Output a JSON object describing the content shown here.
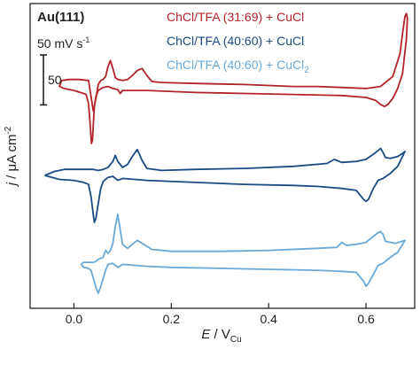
{
  "chart_data": {
    "type": "line",
    "title": "",
    "xlabel_italic": "E",
    "xlabel_rest": " / V",
    "xlabel_sub": "Cu",
    "ylabel_italic": "j",
    "ylabel_rest": " / μA cm",
    "ylabel_sup": "-2",
    "xlim": [
      -0.09,
      0.7
    ],
    "ylim": [
      -290,
      15
    ],
    "x_ticks": [
      0.0,
      0.2,
      0.4,
      0.6
    ],
    "x_tick_labels": [
      "0.0",
      "0.2",
      "0.4",
      "0.6"
    ],
    "y_ticks_labeled": false,
    "grid": false,
    "annotations": {
      "sample": "Au(111)",
      "scan_rate_main": "50 mV s",
      "scan_rate_sup": "-1",
      "scale_bar_label": "50",
      "scale_bar_value": 50
    },
    "legend_position": "top-right",
    "series": [
      {
        "name": "ChCl/TFA (31:69) + CuCl",
        "name_main": "ChCl/TFA (31:69) + CuCl",
        "name_sub": "",
        "color": "#b22328",
        "anodic": [
          [
            0.04,
            -93
          ],
          [
            0.045,
            -80
          ],
          [
            0.05,
            -66
          ],
          [
            0.055,
            -62
          ],
          [
            0.06,
            -61
          ],
          [
            0.065,
            -58
          ],
          [
            0.07,
            -48
          ],
          [
            0.075,
            -42
          ],
          [
            0.08,
            -50
          ],
          [
            0.085,
            -59
          ],
          [
            0.09,
            -61
          ],
          [
            0.1,
            -62
          ],
          [
            0.11,
            -61
          ],
          [
            0.12,
            -57
          ],
          [
            0.13,
            -52
          ],
          [
            0.14,
            -50
          ],
          [
            0.15,
            -57
          ],
          [
            0.16,
            -63
          ],
          [
            0.18,
            -64
          ],
          [
            0.25,
            -65
          ],
          [
            0.35,
            -66
          ],
          [
            0.45,
            -68
          ],
          [
            0.5,
            -68
          ],
          [
            0.55,
            -69
          ],
          [
            0.6,
            -70
          ],
          [
            0.63,
            -68
          ],
          [
            0.655,
            -58
          ],
          [
            0.67,
            -35
          ],
          [
            0.675,
            -15
          ],
          [
            0.68,
            2
          ],
          [
            0.683,
            5
          ],
          [
            0.685,
            0
          ]
        ],
        "cathodic": [
          [
            0.685,
            0
          ],
          [
            0.683,
            -20
          ],
          [
            0.675,
            -55
          ],
          [
            0.665,
            -70
          ],
          [
            0.655,
            -80
          ],
          [
            0.645,
            -86
          ],
          [
            0.638,
            -88
          ],
          [
            0.63,
            -86
          ],
          [
            0.62,
            -82
          ],
          [
            0.6,
            -79
          ],
          [
            0.55,
            -77
          ],
          [
            0.45,
            -76
          ],
          [
            0.35,
            -75
          ],
          [
            0.25,
            -74
          ],
          [
            0.15,
            -72
          ],
          [
            0.1,
            -72
          ],
          [
            0.095,
            -75
          ],
          [
            0.09,
            -71
          ],
          [
            0.08,
            -70
          ],
          [
            0.07,
            -68
          ],
          [
            0.06,
            -69
          ],
          [
            0.05,
            -72
          ],
          [
            0.045,
            -78
          ],
          [
            0.042,
            -88
          ],
          [
            0.04,
            -105
          ],
          [
            0.038,
            -122
          ],
          [
            0.036,
            -125
          ],
          [
            0.034,
            -110
          ],
          [
            0.03,
            -85
          ],
          [
            0.025,
            -76
          ],
          [
            0.02,
            -75
          ],
          [
            0.0,
            -72
          ],
          [
            -0.02,
            -70
          ],
          [
            -0.03,
            -68
          ],
          [
            -0.025,
            -62
          ],
          [
            -0.01,
            -61
          ],
          [
            0.01,
            -61
          ],
          [
            0.03,
            -62
          ],
          [
            0.04,
            -93
          ]
        ]
      },
      {
        "name": "ChCl/TFA (40:60) + CuCl",
        "name_main": "ChCl/TFA (40:60) + CuCl",
        "name_sub": "",
        "color": "#1b4a82",
        "anodic": [
          [
            -0.06,
            -157
          ],
          [
            -0.04,
            -153
          ],
          [
            -0.02,
            -151
          ],
          [
            0.0,
            -151
          ],
          [
            0.02,
            -151
          ],
          [
            0.04,
            -151
          ],
          [
            0.05,
            -152
          ],
          [
            0.06,
            -151
          ],
          [
            0.07,
            -149
          ],
          [
            0.08,
            -143
          ],
          [
            0.085,
            -137
          ],
          [
            0.09,
            -143
          ],
          [
            0.1,
            -149
          ],
          [
            0.11,
            -146
          ],
          [
            0.12,
            -138
          ],
          [
            0.13,
            -131
          ],
          [
            0.14,
            -142
          ],
          [
            0.15,
            -150
          ],
          [
            0.18,
            -152
          ],
          [
            0.25,
            -151
          ],
          [
            0.35,
            -150
          ],
          [
            0.45,
            -148
          ],
          [
            0.52,
            -145
          ],
          [
            0.535,
            -141
          ],
          [
            0.54,
            -142
          ],
          [
            0.55,
            -144
          ],
          [
            0.58,
            -143
          ],
          [
            0.6,
            -141
          ],
          [
            0.62,
            -134
          ],
          [
            0.63,
            -130
          ],
          [
            0.635,
            -134
          ],
          [
            0.64,
            -139
          ],
          [
            0.65,
            -140
          ],
          [
            0.665,
            -138
          ],
          [
            0.675,
            -135
          ],
          [
            0.68,
            -133
          ]
        ],
        "cathodic": [
          [
            0.68,
            -133
          ],
          [
            0.675,
            -138
          ],
          [
            0.665,
            -148
          ],
          [
            0.65,
            -155
          ],
          [
            0.635,
            -160
          ],
          [
            0.625,
            -162
          ],
          [
            0.615,
            -170
          ],
          [
            0.605,
            -181
          ],
          [
            0.6,
            -183
          ],
          [
            0.595,
            -181
          ],
          [
            0.58,
            -172
          ],
          [
            0.55,
            -170
          ],
          [
            0.5,
            -168
          ],
          [
            0.45,
            -167
          ],
          [
            0.35,
            -166
          ],
          [
            0.25,
            -164
          ],
          [
            0.15,
            -162
          ],
          [
            0.1,
            -160
          ],
          [
            0.09,
            -162
          ],
          [
            0.08,
            -158
          ],
          [
            0.07,
            -159
          ],
          [
            0.06,
            -163
          ],
          [
            0.055,
            -170
          ],
          [
            0.05,
            -185
          ],
          [
            0.045,
            -200
          ],
          [
            0.042,
            -204
          ],
          [
            0.04,
            -197
          ],
          [
            0.035,
            -178
          ],
          [
            0.03,
            -166
          ],
          [
            0.02,
            -164
          ],
          [
            0.0,
            -162
          ],
          [
            -0.03,
            -161
          ],
          [
            -0.06,
            -157
          ]
        ]
      },
      {
        "name": "ChCl/TFA (40:60) + CuCl2",
        "name_main": "ChCl/TFA (40:60) + CuCl",
        "name_sub": "2",
        "color": "#6aa8d8",
        "anodic": [
          [
            0.035,
            -244
          ],
          [
            0.04,
            -244
          ],
          [
            0.045,
            -243
          ],
          [
            0.05,
            -241
          ],
          [
            0.06,
            -239
          ],
          [
            0.065,
            -232
          ],
          [
            0.07,
            -235
          ],
          [
            0.075,
            -232
          ],
          [
            0.08,
            -225
          ],
          [
            0.085,
            -208
          ],
          [
            0.09,
            -196
          ],
          [
            0.095,
            -211
          ],
          [
            0.1,
            -226
          ],
          [
            0.11,
            -230
          ],
          [
            0.12,
            -226
          ],
          [
            0.13,
            -222
          ],
          [
            0.14,
            -225
          ],
          [
            0.16,
            -231
          ],
          [
            0.2,
            -233
          ],
          [
            0.3,
            -233
          ],
          [
            0.4,
            -232
          ],
          [
            0.5,
            -230
          ],
          [
            0.54,
            -229
          ],
          [
            0.55,
            -224
          ],
          [
            0.56,
            -227
          ],
          [
            0.58,
            -226
          ],
          [
            0.6,
            -224
          ],
          [
            0.62,
            -216
          ],
          [
            0.63,
            -213
          ],
          [
            0.635,
            -216
          ],
          [
            0.64,
            -223
          ],
          [
            0.66,
            -225
          ],
          [
            0.68,
            -222
          ]
        ],
        "cathodic": [
          [
            0.68,
            -222
          ],
          [
            0.675,
            -226
          ],
          [
            0.665,
            -234
          ],
          [
            0.65,
            -239
          ],
          [
            0.635,
            -245
          ],
          [
            0.625,
            -247
          ],
          [
            0.615,
            -256
          ],
          [
            0.605,
            -265
          ],
          [
            0.6,
            -268
          ],
          [
            0.595,
            -263
          ],
          [
            0.58,
            -254
          ],
          [
            0.55,
            -253
          ],
          [
            0.5,
            -252
          ],
          [
            0.4,
            -251
          ],
          [
            0.3,
            -250
          ],
          [
            0.2,
            -249
          ],
          [
            0.15,
            -248
          ],
          [
            0.1,
            -246
          ],
          [
            0.09,
            -249
          ],
          [
            0.08,
            -245
          ],
          [
            0.07,
            -246
          ],
          [
            0.065,
            -252
          ],
          [
            0.06,
            -260
          ],
          [
            0.055,
            -268
          ],
          [
            0.05,
            -275
          ],
          [
            0.045,
            -269
          ],
          [
            0.04,
            -260
          ],
          [
            0.035,
            -252
          ],
          [
            0.03,
            -250
          ],
          [
            0.02,
            -249
          ],
          [
            0.015,
            -246
          ],
          [
            0.02,
            -244
          ],
          [
            0.035,
            -244
          ]
        ]
      }
    ]
  }
}
